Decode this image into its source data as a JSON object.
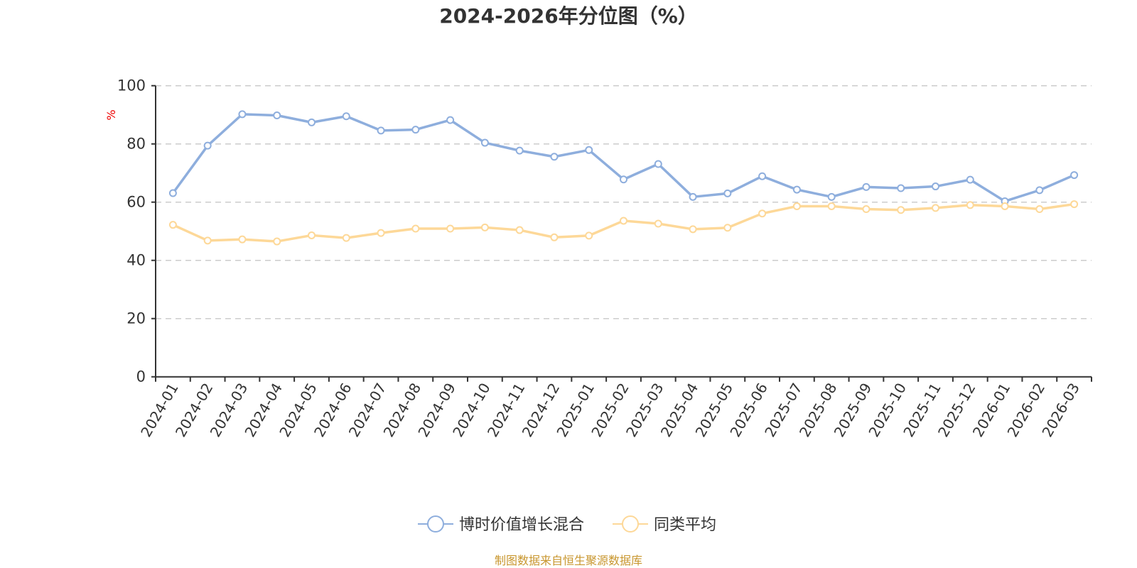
{
  "chart_data": {
    "type": "line",
    "title": "2024-2026年分位图（%）",
    "xlabel": "",
    "ylabel": "%",
    "ylim": [
      0,
      100
    ],
    "yticks": [
      0,
      20,
      40,
      60,
      80,
      100
    ],
    "grid": true,
    "legend_position": "bottom-center",
    "categories": [
      "2024-01",
      "2024-02",
      "2024-03",
      "2024-04",
      "2024-05",
      "2024-06",
      "2024-07",
      "2024-08",
      "2024-09",
      "2024-10",
      "2024-11",
      "2024-12",
      "2025-01",
      "2025-02",
      "2025-03",
      "2025-04",
      "2025-05",
      "2025-06",
      "2025-07",
      "2025-08",
      "2025-09",
      "2025-10",
      "2025-11",
      "2025-12",
      "2026-01",
      "2026-02",
      "2026-03"
    ],
    "series": [
      {
        "name": "博时价值增长混合",
        "color": "#8eaedd",
        "values": [
          63.1,
          79.4,
          90.2,
          89.8,
          87.4,
          89.5,
          84.6,
          84.9,
          88.2,
          80.4,
          77.7,
          75.6,
          77.9,
          67.8,
          73.1,
          61.8,
          63.0,
          68.9,
          64.3,
          61.8,
          65.2,
          64.8,
          65.4,
          67.7,
          60.3,
          64.1,
          69.3
        ]
      },
      {
        "name": "同类平均",
        "color": "#fdd898",
        "values": [
          52.2,
          46.8,
          47.2,
          46.5,
          48.6,
          47.7,
          49.4,
          50.9,
          50.9,
          51.3,
          50.4,
          47.9,
          48.5,
          53.6,
          52.6,
          50.7,
          51.2,
          56.1,
          58.6,
          58.6,
          57.6,
          57.3,
          58.0,
          59.0,
          58.6,
          57.6,
          59.3
        ]
      }
    ],
    "source": "制图数据来自恒生聚源数据库"
  }
}
